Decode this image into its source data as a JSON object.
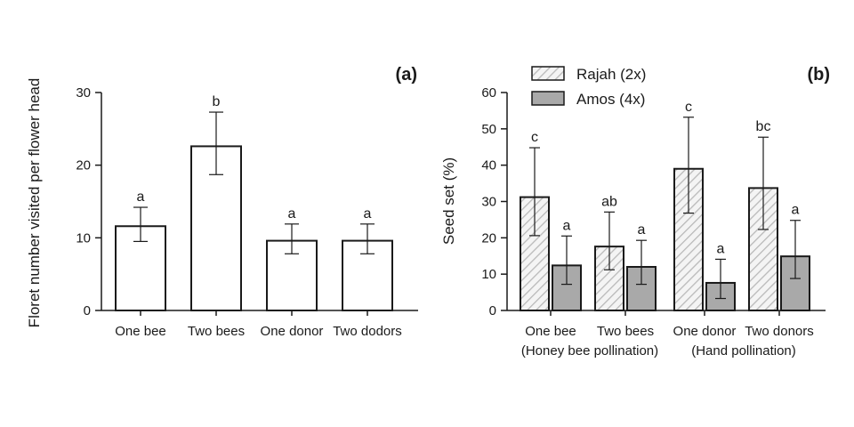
{
  "chart_data": [
    {
      "type": "bar",
      "panel_label": "(a)",
      "ylabel": "Floret number visited per flower head",
      "xlabel": "",
      "ylim": [
        0,
        30
      ],
      "yticks": [
        0,
        10,
        20,
        30
      ],
      "categories": [
        "One bee",
        "Two bees",
        "One donor",
        "Two dodors"
      ],
      "series": [
        {
          "values": [
            11.6,
            22.6,
            9.6,
            9.6
          ],
          "error_low": [
            9.5,
            18.7,
            7.8,
            7.8
          ],
          "error_high": [
            14.2,
            27.3,
            11.9,
            11.9
          ],
          "letters": [
            "a",
            "b",
            "a",
            "a"
          ],
          "fill": "#ffffff",
          "pattern": "none"
        }
      ],
      "grid": false
    },
    {
      "type": "bar",
      "panel_label": "(b)",
      "ylabel": "Seed set (%)",
      "xlabel": "",
      "ylim": [
        0,
        60
      ],
      "yticks": [
        0,
        10,
        20,
        30,
        40,
        50,
        60
      ],
      "categories": [
        "One bee",
        "Two bees",
        "One donor",
        "Two donors"
      ],
      "group_labels": [
        "(Honey bee pollination)",
        "(Hand pollination)"
      ],
      "legend_position": "top-center",
      "series": [
        {
          "name": "Rajah (2x)",
          "values": [
            31.2,
            17.6,
            39.0,
            33.7
          ],
          "error_low": [
            20.6,
            11.2,
            26.8,
            22.3
          ],
          "error_high": [
            44.8,
            27.1,
            53.2,
            47.7
          ],
          "letters": [
            "c",
            "ab",
            "c",
            "bc"
          ],
          "fill": "#f2f2f2",
          "pattern": "hatch"
        },
        {
          "name": "Amos (4x)",
          "values": [
            12.4,
            12.0,
            7.6,
            14.9
          ],
          "error_low": [
            7.2,
            7.2,
            3.3,
            8.8
          ],
          "error_high": [
            20.5,
            19.3,
            14.1,
            24.8
          ],
          "letters": [
            "a",
            "a",
            "a",
            "a"
          ],
          "fill": "#a9a9a9",
          "pattern": "none"
        }
      ],
      "grid": false
    }
  ]
}
